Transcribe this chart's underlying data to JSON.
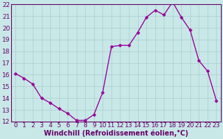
{
  "x": [
    0,
    1,
    2,
    3,
    4,
    5,
    6,
    7,
    8,
    9,
    10,
    11,
    12,
    13,
    14,
    15,
    16,
    17,
    18,
    19,
    20,
    21,
    22,
    23
  ],
  "y": [
    16.1,
    15.7,
    15.2,
    14.0,
    13.6,
    13.1,
    12.7,
    12.1,
    12.1,
    12.6,
    14.5,
    18.4,
    18.5,
    18.5,
    19.6,
    20.9,
    21.5,
    21.1,
    22.2,
    20.9,
    19.8,
    17.2,
    16.3,
    13.8
  ],
  "color": "#990099",
  "bg_color": "#c8e8e8",
  "grid_color": "#aacccc",
  "xlabel": "Windchill (Refroidissement éolien,°C)",
  "ylabel": "",
  "ylim": [
    12,
    22
  ],
  "xlim_min": -0.5,
  "xlim_max": 23.5,
  "yticks": [
    12,
    13,
    14,
    15,
    16,
    17,
    18,
    19,
    20,
    21,
    22
  ],
  "xticks": [
    0,
    1,
    2,
    3,
    4,
    5,
    6,
    7,
    8,
    9,
    10,
    11,
    12,
    13,
    14,
    15,
    16,
    17,
    18,
    19,
    20,
    21,
    22,
    23
  ],
  "marker": "D",
  "markersize": 2.5,
  "linewidth": 1.0,
  "xlabel_fontsize": 7,
  "tick_fontsize": 6.5,
  "tick_color": "#660066",
  "xlabel_color": "#660066",
  "spine_color": "#660066"
}
